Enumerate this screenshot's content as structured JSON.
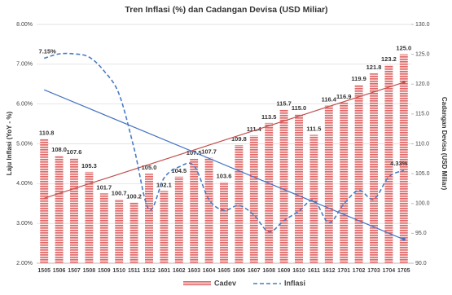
{
  "chart_data": {
    "type": "bar-line",
    "title": "Tren Inflasi (%) dan Cadangan Devisa (USD Miliar)",
    "y_label": "Laju Inflasi (YoY - %)",
    "y2_label": "Cadangan Devisa (USD Miliar)",
    "categories": [
      "1505",
      "1506",
      "1507",
      "1508",
      "1509",
      "1510",
      "1511",
      "1512",
      "1601",
      "1602",
      "1603",
      "1604",
      "1605",
      "1606",
      "1607",
      "1608",
      "1609",
      "1610",
      "1611",
      "1612",
      "1701",
      "1702",
      "1703",
      "1704",
      "1705"
    ],
    "series": [
      {
        "name": "Cadev",
        "type": "bar",
        "axis": "y2",
        "color": "#e06666",
        "trendline": true,
        "trend_color": "#c0504d",
        "values": [
          110.8,
          108.0,
          107.6,
          105.3,
          101.7,
          100.7,
          100.2,
          105.0,
          102.1,
          104.5,
          107.5,
          107.7,
          103.6,
          109.8,
          111.4,
          113.5,
          115.7,
          115.0,
          111.5,
          116.4,
          116.9,
          119.9,
          121.8,
          123.2,
          125.0
        ],
        "value_labels": [
          "110.8",
          "108.0",
          "107.6",
          "105.3",
          "101.7",
          "100.7",
          "100.2",
          "105.0",
          "102.1",
          "104.5",
          "107.5",
          "107.7",
          "103.6",
          "109.8",
          "111.4",
          "113.5",
          "115.7",
          "115.0",
          "111.5",
          "116.4",
          "116.9",
          "119.9",
          "121.8",
          "123.2",
          "125.0"
        ]
      },
      {
        "name": "Inflasi",
        "type": "line",
        "axis": "y",
        "color": "#4a7cc2",
        "dashed": true,
        "trendline": true,
        "trend_color": "#4472c4",
        "values": [
          7.15,
          7.26,
          7.26,
          7.18,
          6.83,
          6.25,
          4.89,
          3.35,
          4.14,
          4.42,
          4.45,
          3.6,
          3.33,
          3.45,
          3.21,
          2.79,
          3.07,
          3.31,
          3.58,
          3.02,
          3.49,
          3.83,
          3.61,
          4.17,
          4.33
        ],
        "value_labels": [
          "7.15%",
          null,
          null,
          null,
          null,
          null,
          null,
          null,
          null,
          null,
          null,
          null,
          null,
          null,
          null,
          null,
          null,
          null,
          null,
          null,
          null,
          null,
          null,
          null,
          "4.33%"
        ]
      }
    ],
    "ylim": [
      2,
      8
    ],
    "yticks": [
      {
        "value": 2,
        "label": "2.00%"
      },
      {
        "value": 3,
        "label": "3.00%"
      },
      {
        "value": 4,
        "label": "4.00%"
      },
      {
        "value": 5,
        "label": "5.00%"
      },
      {
        "value": 6,
        "label": "6.00%"
      },
      {
        "value": 7,
        "label": "7.00%"
      },
      {
        "value": 8,
        "label": "8.00%"
      }
    ],
    "y2lim": [
      90,
      130
    ],
    "y2ticks": [
      {
        "value": 90,
        "label": "90.0"
      },
      {
        "value": 95,
        "label": "95.0"
      },
      {
        "value": 100,
        "label": "100.0"
      },
      {
        "value": 105,
        "label": "105.0"
      },
      {
        "value": 110,
        "label": "110.0"
      },
      {
        "value": 115,
        "label": "115.0"
      },
      {
        "value": 120,
        "label": "120.0"
      },
      {
        "value": 125,
        "label": "125.0"
      },
      {
        "value": 130,
        "label": "130.0"
      }
    ],
    "grid": true,
    "legend": "bottom"
  }
}
